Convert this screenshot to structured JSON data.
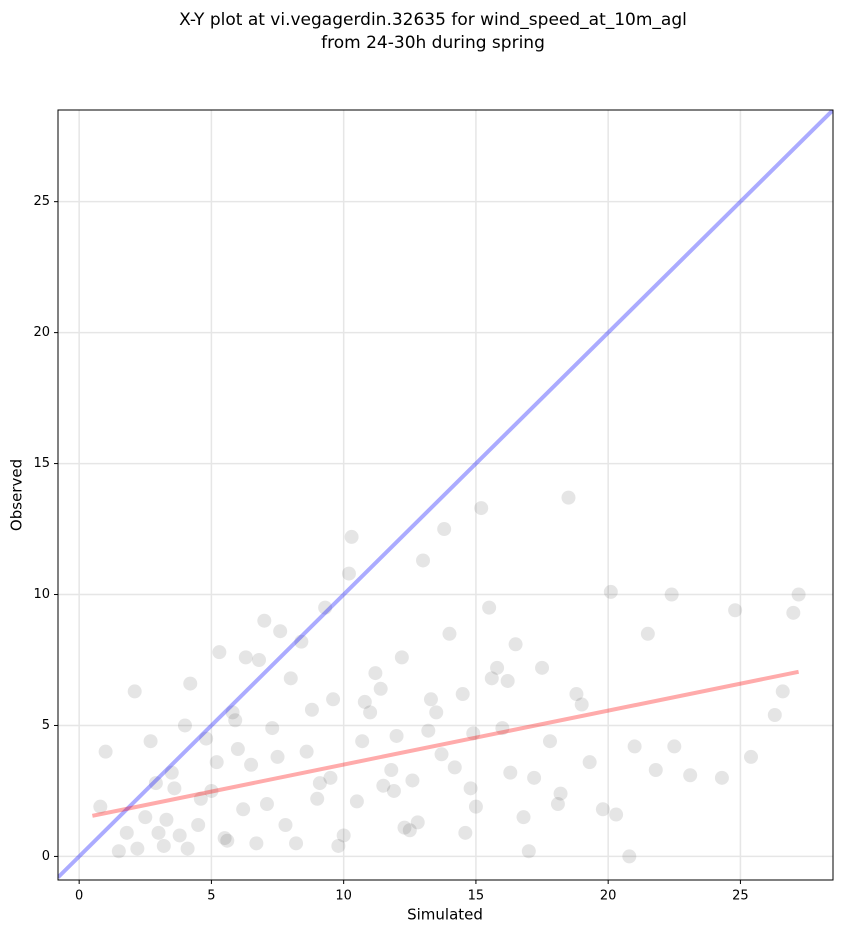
{
  "chart_data": {
    "type": "scatter",
    "title": "X-Y plot at vi.vegagerdin.32635 for wind_speed_at_10m_agl",
    "subtitle": "from 24-30h during spring",
    "xlabel": "Simulated",
    "ylabel": "Observed",
    "xlim": [
      -0.8,
      28.5
    ],
    "ylim": [
      -0.9,
      28.5
    ],
    "xticks": [
      0,
      5,
      10,
      15,
      20,
      25
    ],
    "yticks": [
      0,
      5,
      10,
      15,
      20,
      25
    ],
    "grid": true,
    "color": "#000000",
    "x": [
      3.2,
      3.8,
      4.1,
      4.5,
      5.0,
      5.6,
      6.2,
      3.5,
      4.8,
      5.9,
      7.1,
      2.5,
      2.9,
      1.5,
      1.0,
      0.8,
      2.1,
      6.8,
      7.5,
      8.2,
      9.0,
      9.6,
      10.3,
      11.0,
      11.8,
      12.5,
      13.2,
      14.0,
      14.8,
      15.5,
      16.2,
      17.0,
      17.8,
      18.5,
      19.3,
      20.1,
      21.0,
      22.4,
      23.1,
      24.3,
      24.8,
      25.4,
      26.3,
      26.6,
      27.0,
      27.2,
      4.2,
      5.3,
      6.5,
      7.8,
      8.6,
      9.3,
      10.0,
      10.8,
      11.5,
      12.2,
      13.0,
      13.7,
      14.5,
      15.2,
      16.0,
      16.8,
      17.5,
      18.2,
      19.0,
      19.8,
      20.8,
      21.5,
      22.5,
      3.0,
      4.0,
      5.5,
      6.0,
      7.0,
      8.0,
      9.5,
      10.5,
      11.2,
      12.0,
      12.8,
      13.5,
      14.2,
      15.0,
      16.5,
      17.2,
      18.8,
      6.3,
      7.3,
      8.8,
      9.8,
      10.2,
      11.4,
      12.6,
      13.8,
      14.6,
      15.8,
      5.2,
      4.6,
      6.7,
      8.4,
      2.2,
      3.3,
      1.8,
      9.1,
      10.7,
      11.9,
      13.3,
      14.9,
      16.3,
      18.1,
      5.8,
      7.6,
      12.3,
      15.6,
      20.3,
      21.8,
      3.6,
      2.7
    ],
    "y": [
      0.4,
      0.8,
      0.3,
      1.2,
      2.5,
      0.6,
      1.8,
      3.2,
      4.5,
      5.2,
      2.0,
      1.5,
      2.8,
      0.2,
      4.0,
      1.9,
      6.3,
      7.5,
      3.8,
      0.5,
      2.2,
      6.0,
      12.2,
      5.5,
      3.3,
      1.0,
      4.8,
      8.5,
      2.6,
      9.5,
      6.7,
      0.2,
      4.4,
      13.7,
      3.6,
      10.1,
      4.2,
      10.0,
      3.1,
      3.0,
      9.4,
      3.8,
      5.4,
      6.3,
      9.3,
      10.0,
      6.6,
      7.8,
      3.5,
      1.2,
      4.0,
      9.5,
      0.8,
      5.9,
      2.7,
      7.6,
      11.3,
      3.9,
      6.2,
      13.3,
      4.9,
      1.5,
      7.2,
      2.4,
      5.8,
      1.8,
      0.0,
      8.5,
      4.2,
      0.9,
      5.0,
      0.7,
      4.1,
      9.0,
      6.8,
      3.0,
      2.1,
      7.0,
      4.6,
      1.3,
      5.5,
      3.4,
      1.9,
      8.1,
      3.0,
      6.2,
      7.6,
      4.9,
      5.6,
      0.4,
      10.8,
      6.4,
      2.9,
      12.5,
      0.9,
      7.2,
      3.6,
      2.2,
      0.5,
      8.2,
      0.3,
      1.4,
      0.9,
      2.8,
      4.4,
      2.5,
      6.0,
      4.7,
      3.2,
      2.0,
      5.5,
      8.6,
      1.1,
      6.8,
      1.6,
      3.3,
      2.6,
      4.4
    ],
    "lines": [
      {
        "color": "#0000ff",
        "x": [
          -0.8,
          28.5
        ],
        "y": [
          -0.8,
          28.5
        ]
      },
      {
        "color": "#ff0000",
        "x": [
          0.5,
          27.2
        ],
        "y": [
          1.55,
          7.05
        ]
      }
    ]
  }
}
